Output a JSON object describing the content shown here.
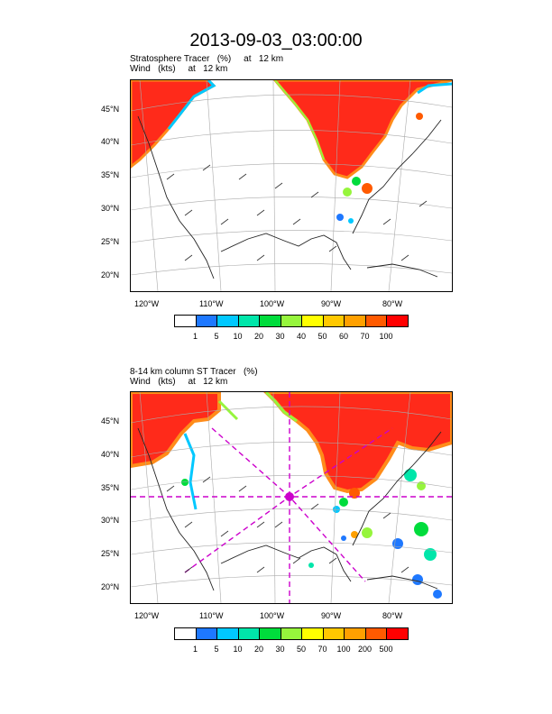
{
  "title": "2013-09-03_03:00:00",
  "panels": [
    {
      "subtitle_line1": "Stratosphere Tracer   (%)     at   12 km",
      "subtitle_line2": "Wind   (kts)     at   12 km",
      "lat_labels": [
        "45°N",
        "40°N",
        "35°N",
        "30°N",
        "25°N",
        "20°N"
      ],
      "lon_labels": [
        "120°W",
        "110°W",
        "100°W",
        "90°W",
        "80°W"
      ],
      "colorbar_labels": [
        "1",
        "5",
        "10",
        "20",
        "30",
        "40",
        "50",
        "60",
        "70",
        "100"
      ]
    },
    {
      "subtitle_line1": "8-14 km column ST Tracer   (%)",
      "subtitle_line2": "Wind   (kts)     at   12 km",
      "lat_labels": [
        "45°N",
        "40°N",
        "35°N",
        "30°N",
        "25°N",
        "20°N"
      ],
      "lon_labels": [
        "120°W",
        "110°W",
        "100°W",
        "90°W",
        "80°W"
      ],
      "colorbar_labels": [
        "1",
        "5",
        "10",
        "20",
        "30",
        "50",
        "70",
        "100",
        "200",
        "500"
      ]
    }
  ],
  "colorbar_colors": [
    "#ffffff",
    "#1e78ff",
    "#00c8ff",
    "#00e6aa",
    "#00dc3c",
    "#96f53c",
    "#ffff00",
    "#ffc800",
    "#ffa000",
    "#ff5a00",
    "#ff0000"
  ],
  "colors": {
    "high_tracer": "#ff2a1a",
    "boundary_orange": "#ff8c1a",
    "marker": "#cc00cc"
  }
}
